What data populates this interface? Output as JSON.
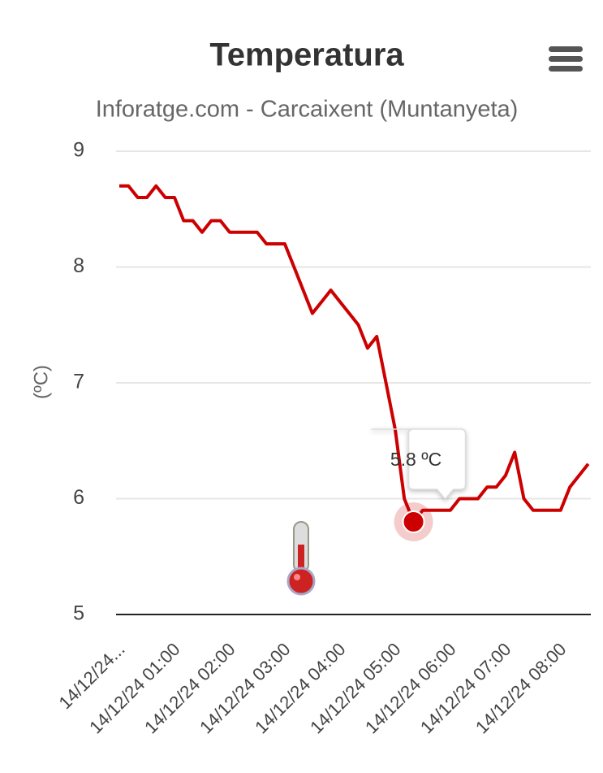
{
  "chart_data": {
    "type": "line",
    "title": "Temperatura",
    "subtitle": "Inforatge.com - Carcaixent (Muntanyeta)",
    "y_label": "(ºC)",
    "color": "#cc0000",
    "grid": true,
    "ylim": [
      5,
      9
    ],
    "yticks": [
      5,
      6,
      7,
      8,
      9
    ],
    "categories": [
      "14/12/24...",
      null,
      null,
      null,
      null,
      null,
      "14/12/24 01:00",
      null,
      null,
      null,
      null,
      null,
      "14/12/24 02:00",
      null,
      null,
      null,
      null,
      null,
      "14/12/24 03:00",
      null,
      null,
      null,
      null,
      null,
      "14/12/24 04:00",
      null,
      null,
      null,
      null,
      null,
      "14/12/24 05:00",
      null,
      null,
      null,
      null,
      null,
      "14/12/24 06:00",
      null,
      null,
      null,
      null,
      null,
      "14/12/24 07:00",
      null,
      null,
      null,
      null,
      null,
      "14/12/24 08:00",
      null,
      null,
      null
    ],
    "values": [
      8.7,
      8.7,
      8.6,
      8.6,
      8.7,
      8.6,
      8.6,
      8.4,
      8.4,
      8.3,
      8.4,
      8.4,
      8.3,
      8.3,
      8.3,
      8.3,
      8.2,
      8.2,
      8.2,
      8.0,
      7.8,
      7.6,
      7.7,
      7.8,
      7.7,
      7.6,
      7.5,
      7.3,
      7.4,
      7.0,
      6.6,
      6.0,
      5.8,
      5.9,
      5.9,
      5.9,
      5.9,
      6.0,
      6.0,
      6.0,
      6.1,
      6.1,
      6.2,
      6.4,
      6.0,
      5.9,
      5.9,
      5.9,
      5.9,
      6.1,
      6.2,
      6.3
    ],
    "value_labels": [
      null,
      null,
      null,
      null,
      null,
      null,
      null,
      null,
      null,
      null,
      null,
      null,
      null,
      null,
      null,
      null,
      null,
      null,
      null,
      null,
      null,
      null,
      null,
      null,
      null,
      null,
      null,
      null,
      null,
      null,
      null,
      null,
      "5.8 ºC",
      null,
      null,
      null,
      null,
      null,
      null,
      null,
      null,
      null,
      null,
      null,
      null,
      null,
      null,
      null,
      null,
      null,
      null,
      null
    ]
  }
}
